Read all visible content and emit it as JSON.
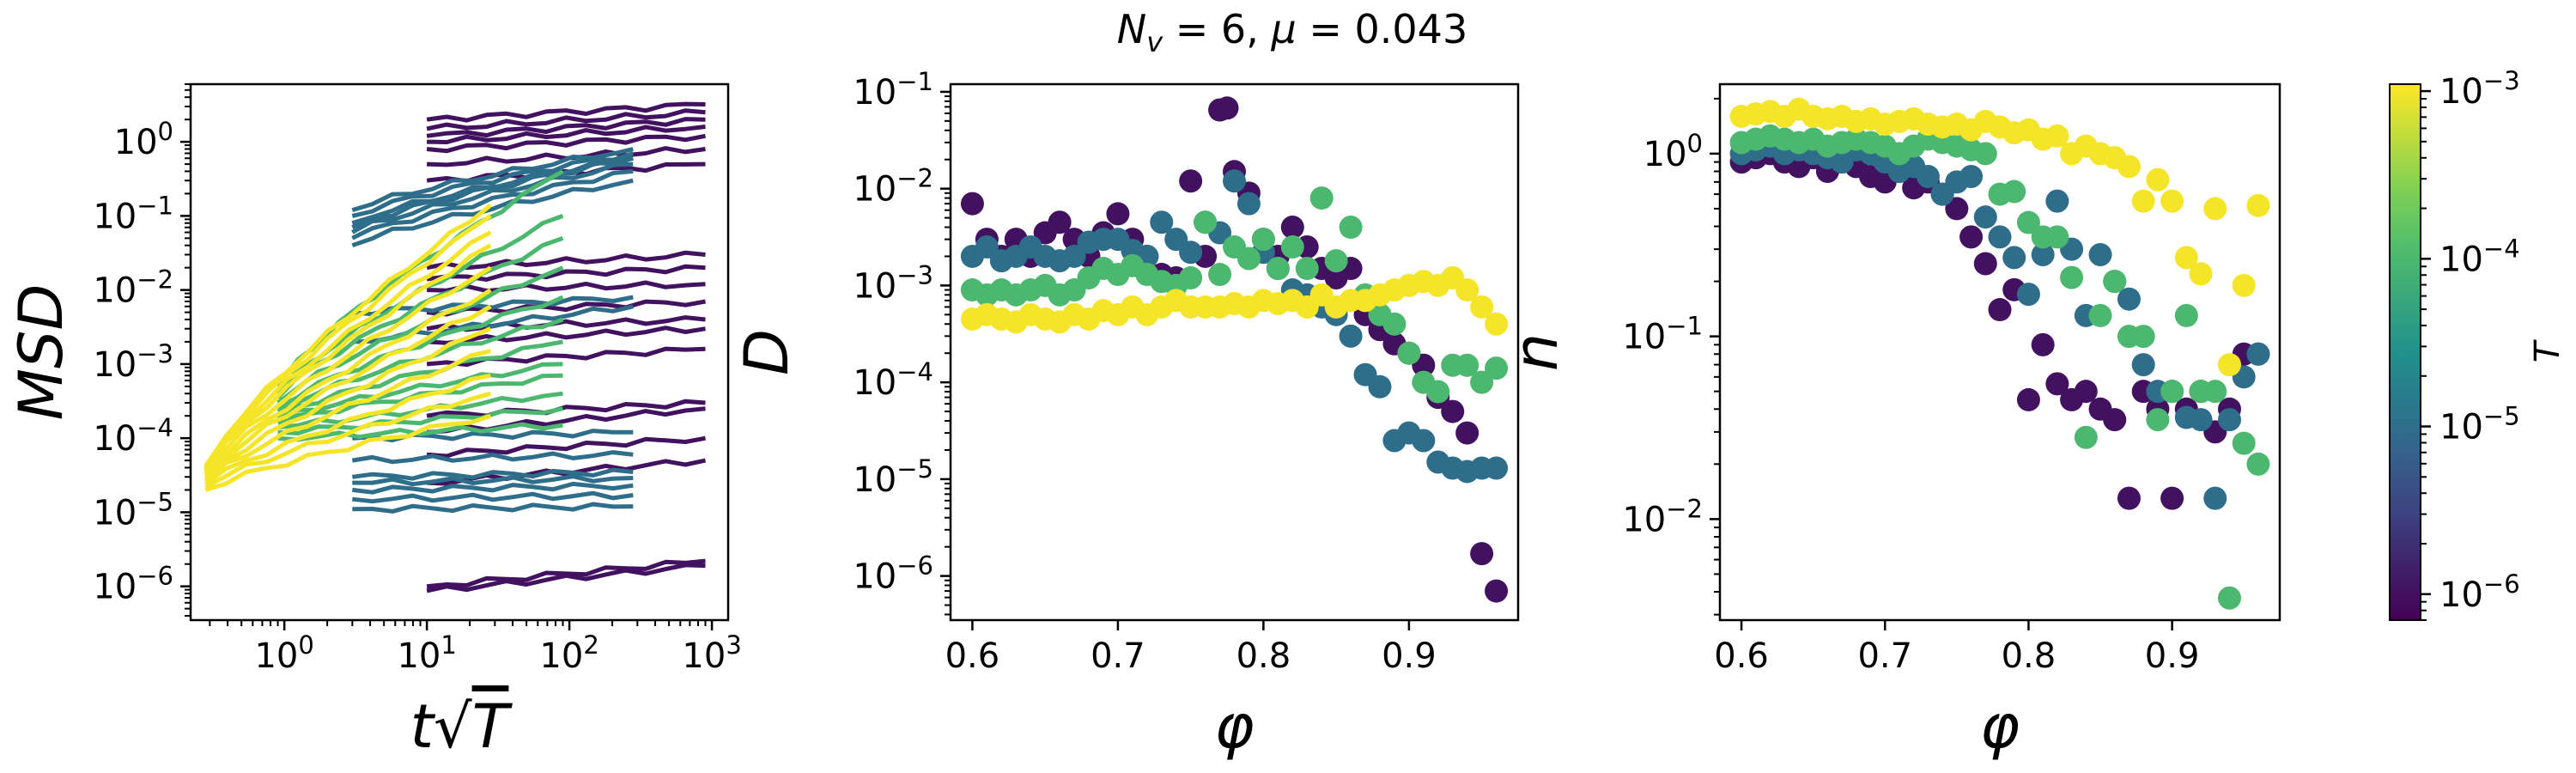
{
  "figure": {
    "suptitle": "N_v = 6, μ = 0.043",
    "colorbar": {
      "label": "T",
      "min": 7e-07,
      "max": 0.0011,
      "scale": "log",
      "colormap": "viridis",
      "ticks": [
        {
          "v": 1e-06,
          "label": "10^-6"
        },
        {
          "v": 1e-05,
          "label": "10^-5"
        },
        {
          "v": 0.0001,
          "label": "10^-4"
        },
        {
          "v": 0.001,
          "label": "10^-3"
        }
      ]
    }
  },
  "chart_data": [
    {
      "type": "line",
      "xlabel": "t√T",
      "ylabel": "MSD",
      "xscale": "log",
      "yscale": "log",
      "xlim": [
        0.22,
        1300
      ],
      "ylim": [
        3.5e-07,
        6
      ],
      "xticks": [
        {
          "v": 1,
          "label": "10^0"
        },
        {
          "v": 10,
          "label": "10^1"
        },
        {
          "v": 100,
          "label": "10^2"
        },
        {
          "v": 1000,
          "label": "10^3"
        }
      ],
      "yticks": [
        {
          "v": 1e-06,
          "label": "10^-6"
        },
        {
          "v": 1e-05,
          "label": "10^-5"
        },
        {
          "v": 0.0001,
          "label": "10^-4"
        },
        {
          "v": 0.001,
          "label": "10^-3"
        },
        {
          "v": 0.01,
          "label": "10^-2"
        },
        {
          "v": 0.1,
          "label": "10^-1"
        },
        {
          "v": 1,
          "label": "10^0"
        }
      ],
      "series_groups": [
        {
          "T": 1e-06,
          "x_range": [
            10,
            900
          ],
          "start": [
            8.7e-07,
            1e-06,
            2.5e-05,
            6e-05,
            0.00012,
            0.0002,
            0.003,
            0.001,
            0.002,
            0.005,
            0.01,
            0.014,
            0.02,
            0.3,
            0.5,
            0.8,
            1.0,
            1.2,
            1.5,
            2.0
          ],
          "end": [
            1.9e-06,
            2.2e-06,
            5e-05,
            0.0001,
            0.00025,
            0.0003,
            0.004,
            0.0016,
            0.003,
            0.007,
            0.012,
            0.02,
            0.03,
            0.5,
            0.8,
            1.2,
            1.6,
            2.0,
            2.5,
            3.2
          ]
        },
        {
          "T": 1e-05,
          "x_range": [
            3,
            280
          ],
          "start": [
            1.1e-05,
            1.5e-05,
            2e-05,
            2.5e-05,
            3e-05,
            5e-05,
            0.0001,
            0.002,
            0.005,
            0.04,
            0.05,
            0.06,
            0.07,
            0.08,
            0.1,
            0.12
          ],
          "end": [
            1.2e-05,
            1.7e-05,
            2.3e-05,
            2.9e-05,
            3.5e-05,
            6e-05,
            0.00012,
            0.006,
            0.008,
            0.3,
            0.4,
            0.5,
            0.6,
            0.6,
            0.7,
            0.8
          ]
        },
        {
          "T": 0.0001,
          "x_range": [
            0.9,
            90
          ],
          "start": [
            0.0001,
            0.00012,
            0.00014,
            0.00016,
            0.00018,
            0.0002,
            0.00023,
            0.00026,
            0.0003,
            0.00035,
            0.0004,
            0.0005
          ],
          "end": [
            0.00015,
            0.00025,
            0.0004,
            0.0007,
            0.001,
            0.002,
            0.004,
            0.008,
            0.02,
            0.05,
            0.1,
            0.4
          ]
        },
        {
          "T": 0.001,
          "x_range": [
            0.28,
            28
          ],
          "start": [
            2e-05,
            2.2e-05,
            2.4e-05,
            2.6e-05,
            2.8e-05,
            3e-05,
            3.2e-05,
            3.4e-05,
            3.6e-05,
            3.8e-05,
            4e-05,
            4.2e-05
          ],
          "end": [
            0.0002,
            0.0004,
            0.0007,
            0.0015,
            0.003,
            0.006,
            0.01,
            0.02,
            0.04,
            0.06,
            0.1,
            0.14
          ]
        }
      ]
    },
    {
      "type": "scatter",
      "xlabel": "φ",
      "ylabel": "D",
      "xscale": "linear",
      "yscale": "log",
      "xlim": [
        0.585,
        0.975
      ],
      "ylim": [
        3.5e-07,
        0.12
      ],
      "xticks": [
        {
          "v": 0.6,
          "label": "0.6"
        },
        {
          "v": 0.7,
          "label": "0.7"
        },
        {
          "v": 0.8,
          "label": "0.8"
        },
        {
          "v": 0.9,
          "label": "0.9"
        }
      ],
      "yticks": [
        {
          "v": 1e-06,
          "label": "10^-6"
        },
        {
          "v": 1e-05,
          "label": "10^-5"
        },
        {
          "v": 0.0001,
          "label": "10^-4"
        },
        {
          "v": 0.001,
          "label": "10^-3"
        },
        {
          "v": 0.01,
          "label": "10^-2"
        },
        {
          "v": 0.1,
          "label": "10^-1"
        }
      ],
      "series": [
        {
          "T": 1e-06,
          "x": [
            0.6,
            0.61,
            0.62,
            0.63,
            0.64,
            0.65,
            0.66,
            0.67,
            0.68,
            0.69,
            0.7,
            0.71,
            0.72,
            0.73,
            0.74,
            0.75,
            0.76,
            0.77,
            0.775,
            0.78,
            0.79,
            0.8,
            0.81,
            0.82,
            0.83,
            0.84,
            0.85,
            0.86,
            0.87,
            0.88,
            0.89,
            0.9,
            0.91,
            0.92,
            0.93,
            0.94,
            0.95,
            0.96
          ],
          "y": [
            0.007,
            0.003,
            0.002,
            0.003,
            0.002,
            0.0035,
            0.0045,
            0.003,
            0.002,
            0.0035,
            0.0055,
            0.003,
            0.002,
            0.0013,
            0.0012,
            0.012,
            0.002,
            0.065,
            0.068,
            0.015,
            0.009,
            0.003,
            0.002,
            0.004,
            0.0025,
            0.0015,
            0.0012,
            0.0015,
            0.0005,
            0.00035,
            0.00025,
            0.0002,
            0.00015,
            7e-05,
            5e-05,
            3e-05,
            1.7e-06,
            7e-07
          ]
        },
        {
          "T": 1e-05,
          "x": [
            0.6,
            0.61,
            0.62,
            0.63,
            0.64,
            0.65,
            0.66,
            0.67,
            0.68,
            0.69,
            0.7,
            0.71,
            0.72,
            0.73,
            0.74,
            0.75,
            0.76,
            0.77,
            0.78,
            0.79,
            0.8,
            0.81,
            0.82,
            0.83,
            0.84,
            0.85,
            0.86,
            0.87,
            0.88,
            0.89,
            0.9,
            0.91,
            0.92,
            0.93,
            0.94,
            0.95,
            0.96
          ],
          "y": [
            0.002,
            0.0025,
            0.0018,
            0.002,
            0.0025,
            0.002,
            0.0018,
            0.002,
            0.0028,
            0.003,
            0.003,
            0.0023,
            0.002,
            0.0045,
            0.003,
            0.0022,
            0.0045,
            0.0035,
            0.012,
            0.007,
            0.0022,
            0.0015,
            0.0009,
            0.0008,
            0.0006,
            0.0005,
            0.0003,
            0.00012,
            9e-05,
            2.5e-05,
            3e-05,
            2.5e-05,
            1.5e-05,
            1.3e-05,
            1.2e-05,
            1.3e-05,
            1.3e-05
          ]
        },
        {
          "T": 0.0001,
          "x": [
            0.6,
            0.61,
            0.62,
            0.63,
            0.64,
            0.65,
            0.66,
            0.67,
            0.68,
            0.69,
            0.7,
            0.71,
            0.72,
            0.73,
            0.74,
            0.75,
            0.76,
            0.77,
            0.78,
            0.79,
            0.8,
            0.81,
            0.82,
            0.83,
            0.84,
            0.85,
            0.86,
            0.87,
            0.88,
            0.89,
            0.9,
            0.91,
            0.92,
            0.93,
            0.94,
            0.95,
            0.96
          ],
          "y": [
            0.0009,
            0.0008,
            0.0009,
            0.0008,
            0.0009,
            0.001,
            0.0008,
            0.0009,
            0.0012,
            0.0015,
            0.0013,
            0.0016,
            0.0013,
            0.0011,
            0.001,
            0.0012,
            0.0045,
            0.0013,
            0.0025,
            0.0019,
            0.003,
            0.0015,
            0.0025,
            0.0015,
            0.008,
            0.0018,
            0.004,
            0.0008,
            0.0005,
            0.0004,
            0.0002,
            0.0001,
            8e-05,
            0.00015,
            0.00015,
            0.0001,
            0.00014
          ]
        },
        {
          "T": 0.001,
          "x": [
            0.6,
            0.61,
            0.62,
            0.63,
            0.64,
            0.65,
            0.66,
            0.67,
            0.68,
            0.69,
            0.7,
            0.71,
            0.72,
            0.73,
            0.74,
            0.75,
            0.76,
            0.77,
            0.78,
            0.79,
            0.8,
            0.81,
            0.82,
            0.83,
            0.84,
            0.85,
            0.86,
            0.87,
            0.88,
            0.89,
            0.9,
            0.91,
            0.92,
            0.93,
            0.94,
            0.95,
            0.96
          ],
          "y": [
            0.00045,
            0.0005,
            0.00045,
            0.00042,
            0.0005,
            0.00045,
            0.00042,
            0.0005,
            0.00045,
            0.00055,
            0.0005,
            0.0006,
            0.0005,
            0.0006,
            0.0007,
            0.0006,
            0.0006,
            0.0006,
            0.00065,
            0.0006,
            0.0007,
            0.00065,
            0.0007,
            0.0006,
            0.0008,
            0.0006,
            0.0007,
            0.0007,
            0.0008,
            0.0009,
            0.001,
            0.0011,
            0.001,
            0.0012,
            0.0009,
            0.0006,
            0.0004
          ]
        }
      ]
    },
    {
      "type": "scatter",
      "xlabel": "φ",
      "ylabel": "n",
      "xscale": "linear",
      "yscale": "log",
      "xlim": [
        0.585,
        0.975
      ],
      "ylim": [
        0.0028,
        2.4
      ],
      "xticks": [
        {
          "v": 0.6,
          "label": "0.6"
        },
        {
          "v": 0.7,
          "label": "0.7"
        },
        {
          "v": 0.8,
          "label": "0.8"
        },
        {
          "v": 0.9,
          "label": "0.9"
        }
      ],
      "yticks": [
        {
          "v": 0.01,
          "label": "10^-2"
        },
        {
          "v": 0.1,
          "label": "10^-1"
        },
        {
          "v": 1,
          "label": "10^0"
        }
      ],
      "series": [
        {
          "T": 1e-06,
          "x": [
            0.6,
            0.61,
            0.62,
            0.63,
            0.64,
            0.65,
            0.66,
            0.67,
            0.68,
            0.69,
            0.7,
            0.71,
            0.72,
            0.73,
            0.74,
            0.75,
            0.76,
            0.77,
            0.78,
            0.79,
            0.8,
            0.81,
            0.82,
            0.83,
            0.84,
            0.85,
            0.86,
            0.87,
            0.88,
            0.89,
            0.9,
            0.91,
            0.92,
            0.93,
            0.94,
            0.95,
            0.96
          ],
          "y": [
            0.9,
            0.95,
            1.0,
            0.9,
            0.85,
            0.95,
            0.8,
            0.9,
            0.85,
            0.75,
            0.7,
            0.8,
            0.65,
            0.7,
            0.6,
            0.5,
            0.35,
            0.25,
            0.14,
            0.18,
            0.045,
            0.09,
            0.055,
            0.045,
            0.05,
            0.04,
            0.035,
            0.013,
            0.05,
            0.04,
            0.013,
            0.04,
            0.05,
            0.03,
            0.04,
            0.08,
            0.08
          ]
        },
        {
          "T": 1e-05,
          "x": [
            0.6,
            0.61,
            0.62,
            0.63,
            0.64,
            0.65,
            0.66,
            0.67,
            0.68,
            0.69,
            0.7,
            0.71,
            0.72,
            0.73,
            0.74,
            0.75,
            0.76,
            0.77,
            0.78,
            0.79,
            0.8,
            0.81,
            0.82,
            0.83,
            0.84,
            0.85,
            0.86,
            0.87,
            0.88,
            0.89,
            0.9,
            0.91,
            0.92,
            0.93,
            0.94,
            0.95,
            0.96
          ],
          "y": [
            1.0,
            1.05,
            1.1,
            1.0,
            1.05,
            1.0,
            0.95,
            0.9,
            1.05,
            1.0,
            0.9,
            0.8,
            0.85,
            0.75,
            0.6,
            0.7,
            0.75,
            0.45,
            0.35,
            0.27,
            0.17,
            0.28,
            0.55,
            0.3,
            0.13,
            0.28,
            0.2,
            0.16,
            0.07,
            0.05,
            0.05,
            0.036,
            0.035,
            0.013,
            0.035,
            0.06,
            0.08
          ]
        },
        {
          "T": 0.0001,
          "x": [
            0.6,
            0.61,
            0.62,
            0.63,
            0.64,
            0.65,
            0.66,
            0.67,
            0.68,
            0.69,
            0.7,
            0.71,
            0.72,
            0.73,
            0.74,
            0.75,
            0.76,
            0.77,
            0.78,
            0.79,
            0.8,
            0.81,
            0.82,
            0.83,
            0.84,
            0.85,
            0.86,
            0.87,
            0.88,
            0.89,
            0.9,
            0.91,
            0.92,
            0.93,
            0.94,
            0.95,
            0.96
          ],
          "y": [
            1.15,
            1.2,
            1.25,
            1.2,
            1.15,
            1.2,
            1.1,
            1.15,
            1.2,
            1.15,
            1.1,
            1.0,
            1.1,
            1.2,
            1.15,
            1.1,
            1.05,
            1.0,
            0.6,
            0.62,
            0.42,
            0.35,
            0.35,
            0.21,
            0.028,
            0.13,
            0.2,
            0.1,
            0.1,
            0.035,
            0.05,
            0.13,
            0.05,
            0.05,
            0.0037,
            0.026,
            0.02
          ]
        },
        {
          "T": 0.001,
          "x": [
            0.6,
            0.61,
            0.62,
            0.63,
            0.64,
            0.65,
            0.66,
            0.67,
            0.68,
            0.69,
            0.7,
            0.71,
            0.72,
            0.73,
            0.74,
            0.75,
            0.76,
            0.77,
            0.78,
            0.79,
            0.8,
            0.81,
            0.82,
            0.83,
            0.84,
            0.85,
            0.86,
            0.87,
            0.88,
            0.89,
            0.9,
            0.91,
            0.92,
            0.93,
            0.94,
            0.95,
            0.96
          ],
          "y": [
            1.6,
            1.65,
            1.7,
            1.6,
            1.75,
            1.6,
            1.55,
            1.6,
            1.5,
            1.55,
            1.45,
            1.5,
            1.55,
            1.45,
            1.4,
            1.45,
            1.35,
            1.5,
            1.4,
            1.3,
            1.35,
            1.2,
            1.25,
            1.0,
            1.1,
            1.0,
            0.95,
            0.85,
            0.55,
            0.72,
            0.55,
            0.27,
            0.22,
            0.5,
            0.07,
            0.19,
            0.52
          ]
        }
      ]
    }
  ]
}
